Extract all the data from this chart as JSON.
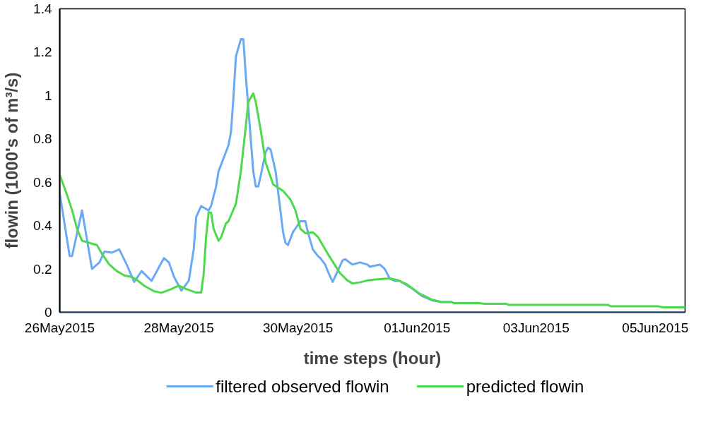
{
  "chart_data": {
    "type": "line",
    "xlabel": "time steps (hour)",
    "ylabel": "flowin (1000's of m³/s)",
    "xlim": [
      "2015-05-26T00:00",
      "2015-06-05T12:00"
    ],
    "xticks": [
      {
        "value": "2015-05-26",
        "label": "26May2015"
      },
      {
        "value": "2015-05-28",
        "label": "28May2015"
      },
      {
        "value": "2015-05-30",
        "label": "30May2015"
      },
      {
        "value": "2015-06-01",
        "label": "01Jun2015"
      },
      {
        "value": "2015-06-03",
        "label": "03Jun2015"
      },
      {
        "value": "2015-06-05",
        "label": "05Jun2015"
      }
    ],
    "ylim": [
      0,
      1.4
    ],
    "yticks": [
      0,
      0.2,
      0.4,
      0.6,
      0.8,
      1,
      1.2,
      1.4
    ],
    "grid": false,
    "legend": "bottom",
    "marker": "none",
    "line_style": "solid",
    "series": [
      {
        "name": "filtered observed flowin",
        "color": "#6aaaf5",
        "x": [
          "2015-05-26T00:00",
          "2015-05-26T04:00",
          "2015-05-26T05:00",
          "2015-05-26T09:00",
          "2015-05-26T13:00",
          "2015-05-26T16:00",
          "2015-05-26T18:00",
          "2015-05-26T21:00",
          "2015-05-27T00:00",
          "2015-05-27T03:00",
          "2015-05-27T06:00",
          "2015-05-27T09:00",
          "2015-05-27T13:00",
          "2015-05-27T18:00",
          "2015-05-27T20:00",
          "2015-05-27T22:00",
          "2015-05-28T01:00",
          "2015-05-28T04:00",
          "2015-05-28T06:00",
          "2015-05-28T07:00",
          "2015-05-28T09:00",
          "2015-05-28T12:00",
          "2015-05-28T13:00",
          "2015-05-28T15:00",
          "2015-05-28T16:00",
          "2015-05-28T18:00",
          "2015-05-28T20:00",
          "2015-05-28T21:00",
          "2015-05-28T22:00",
          "2015-05-28T23:00",
          "2015-05-29T01:00",
          "2015-05-29T02:00",
          "2015-05-29T03:00",
          "2015-05-29T06:00",
          "2015-05-29T07:00",
          "2015-05-29T08:00",
          "2015-05-29T09:00",
          "2015-05-29T11:00",
          "2015-05-29T12:00",
          "2015-05-29T13:00",
          "2015-05-29T15:00",
          "2015-05-29T18:00",
          "2015-05-29T19:00",
          "2015-05-29T20:00",
          "2015-05-29T22:00",
          "2015-05-30T01:00",
          "2015-05-30T03:00",
          "2015-05-30T04:00",
          "2015-05-30T06:00",
          "2015-05-30T08:00",
          "2015-05-30T09:00",
          "2015-05-30T11:00",
          "2015-05-30T12:00",
          "2015-05-30T14:00",
          "2015-05-30T15:00",
          "2015-05-30T18:00",
          "2015-05-30T19:00",
          "2015-05-30T22:00",
          "2015-05-31T01:00",
          "2015-05-31T04:00",
          "2015-05-31T05:00",
          "2015-05-31T09:00",
          "2015-05-31T11:00",
          "2015-05-31T13:00",
          "2015-05-31T15:00",
          "2015-05-31T17:00",
          "2015-05-31T22:00",
          "2015-06-01T02:00",
          "2015-06-01T06:00",
          "2015-06-01T10:00",
          "2015-06-01T14:00"
        ],
        "values": [
          0.55,
          0.26,
          0.26,
          0.47,
          0.2,
          0.23,
          0.28,
          0.275,
          0.29,
          0.22,
          0.14,
          0.19,
          0.145,
          0.25,
          0.23,
          0.165,
          0.1,
          0.145,
          0.29,
          0.44,
          0.49,
          0.47,
          0.49,
          0.58,
          0.65,
          0.71,
          0.77,
          0.83,
          0.99,
          1.18,
          1.26,
          1.26,
          1.09,
          0.65,
          0.58,
          0.58,
          0.63,
          0.74,
          0.76,
          0.75,
          0.65,
          0.37,
          0.32,
          0.31,
          0.37,
          0.42,
          0.42,
          0.37,
          0.29,
          0.26,
          0.25,
          0.22,
          0.19,
          0.14,
          0.165,
          0.24,
          0.245,
          0.22,
          0.23,
          0.22,
          0.21,
          0.22,
          0.2,
          0.155,
          0.145,
          0.145,
          0.11,
          0.075,
          0.055,
          0.047,
          0.047
        ]
      },
      {
        "name": "predicted flowin",
        "color": "#4cd94c",
        "x": [
          "2015-05-26T00:00",
          "2015-05-26T03:00",
          "2015-05-26T05:00",
          "2015-05-26T07:00",
          "2015-05-26T09:00",
          "2015-05-26T12:00",
          "2015-05-26T15:00",
          "2015-05-26T17:00",
          "2015-05-26T20:00",
          "2015-05-26T23:00",
          "2015-05-27T02:00",
          "2015-05-27T05:00",
          "2015-05-27T07:00",
          "2015-05-27T10:00",
          "2015-05-27T14:00",
          "2015-05-27T17:00",
          "2015-05-27T21:00",
          "2015-05-28T00:00",
          "2015-05-28T03:00",
          "2015-05-28T07:00",
          "2015-05-28T09:00",
          "2015-05-28T10:00",
          "2015-05-28T11:00",
          "2015-05-28T12:00",
          "2015-05-28T13:00",
          "2015-05-28T14:00",
          "2015-05-28T16:00",
          "2015-05-28T17:00",
          "2015-05-28T19:00",
          "2015-05-28T20:00",
          "2015-05-28T23:00",
          "2015-05-29T01:00",
          "2015-05-29T03:00",
          "2015-05-29T04:00",
          "2015-05-29T06:00",
          "2015-05-29T07:00",
          "2015-05-29T09:00",
          "2015-05-29T11:00",
          "2015-05-29T14:00",
          "2015-05-29T18:00",
          "2015-05-29T21:00",
          "2015-05-29T23:00",
          "2015-05-30T01:00",
          "2015-05-30T03:00",
          "2015-05-30T06:00",
          "2015-05-30T08:00",
          "2015-05-30T12:00",
          "2015-05-30T17:00",
          "2015-05-30T20:00",
          "2015-05-30T22:00",
          "2015-05-31T01:00",
          "2015-05-31T04:00",
          "2015-05-31T08:00",
          "2015-05-31T13:00",
          "2015-05-31T16:00",
          "2015-05-31T20:00",
          "2015-06-01T01:00",
          "2015-06-01T06:00",
          "2015-06-01T10:00",
          "2015-06-01T14:00",
          "2015-06-01T15:00",
          "2015-06-02T01:00",
          "2015-06-02T03:00",
          "2015-06-02T12:00",
          "2015-06-02T13:00",
          "2015-06-04T05:00",
          "2015-06-04T06:00",
          "2015-06-05T01:00",
          "2015-06-05T03:00",
          "2015-06-05T12:00"
        ],
        "values": [
          0.635,
          0.54,
          0.47,
          0.385,
          0.33,
          0.32,
          0.31,
          0.27,
          0.22,
          0.19,
          0.17,
          0.163,
          0.15,
          0.123,
          0.097,
          0.09,
          0.107,
          0.123,
          0.107,
          0.091,
          0.091,
          0.175,
          0.35,
          0.46,
          0.46,
          0.385,
          0.33,
          0.345,
          0.41,
          0.42,
          0.5,
          0.65,
          0.86,
          0.97,
          1.01,
          0.97,
          0.84,
          0.69,
          0.59,
          0.56,
          0.52,
          0.47,
          0.385,
          0.365,
          0.369,
          0.348,
          0.27,
          0.18,
          0.146,
          0.133,
          0.138,
          0.147,
          0.152,
          0.156,
          0.149,
          0.128,
          0.086,
          0.058,
          0.047,
          0.047,
          0.042,
          0.042,
          0.039,
          0.039,
          0.034,
          0.034,
          0.028,
          0.028,
          0.023,
          0.023
        ]
      }
    ]
  }
}
